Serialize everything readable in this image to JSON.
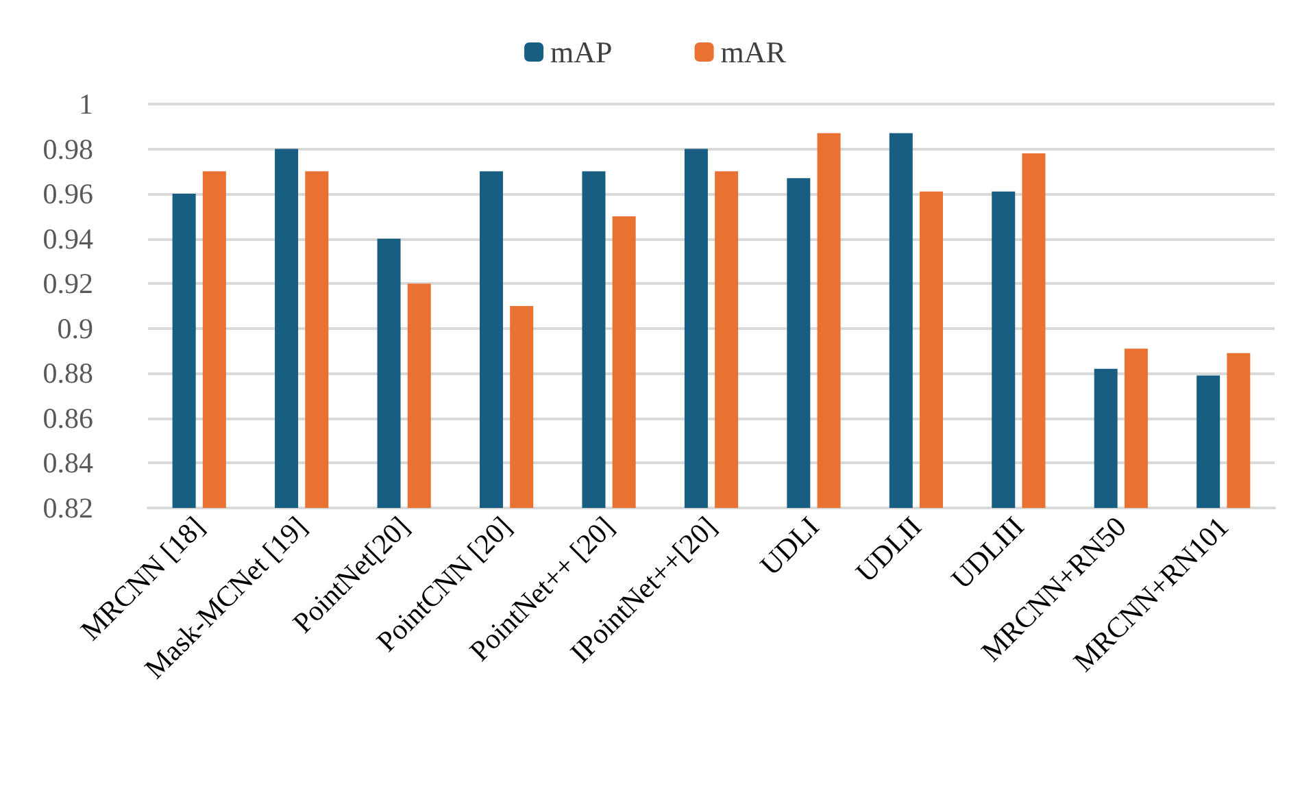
{
  "chart_data": {
    "type": "bar",
    "categories": [
      "MRCNN [18]",
      "Mask-MCNet [19]",
      "PointNet[20]",
      "PointCNN [20]",
      "PointNet++ [20]",
      "IPointNet++[20]",
      "UDLI",
      "UDLII",
      "UDLIII",
      "MRCNN+RN50",
      "MRCNN+RN101"
    ],
    "series": [
      {
        "name": "mAP",
        "color": "#175e82",
        "values": [
          0.96,
          0.98,
          0.94,
          0.97,
          0.97,
          0.98,
          0.967,
          0.987,
          0.961,
          0.882,
          0.879
        ]
      },
      {
        "name": "mAR",
        "color": "#e97132",
        "values": [
          0.97,
          0.97,
          0.92,
          0.91,
          0.95,
          0.97,
          0.987,
          0.961,
          0.978,
          0.891,
          0.889
        ]
      }
    ],
    "ylim": [
      0.82,
      1
    ],
    "yticks": [
      0.82,
      0.84,
      0.86,
      0.88,
      0.9,
      0.92,
      0.94,
      0.96,
      0.98,
      1
    ],
    "grid": "y",
    "legend": "top"
  }
}
